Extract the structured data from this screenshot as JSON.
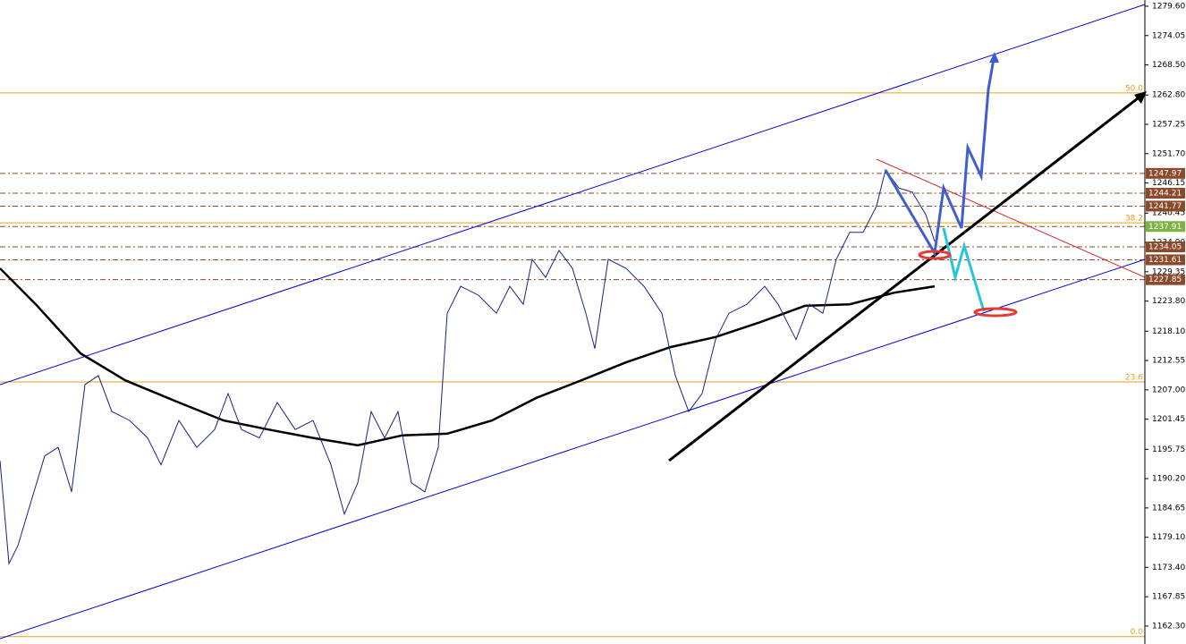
{
  "chart_data": {
    "type": "line",
    "x": [
      0,
      10,
      20,
      35,
      50,
      65,
      80,
      95,
      110,
      125,
      145,
      165,
      180,
      200,
      220,
      240,
      255,
      270,
      290,
      310,
      330,
      350,
      370,
      385,
      400,
      415,
      430,
      445,
      460,
      475,
      490,
      500,
      515,
      535,
      555,
      570,
      585,
      595,
      610,
      625,
      640,
      655,
      665,
      680,
      700,
      720,
      740,
      755,
      770,
      785,
      800,
      815,
      835,
      855,
      870,
      890,
      905,
      920,
      935,
      950,
      965,
      980,
      990,
      1005,
      1020,
      1035,
      1045
    ],
    "xlim": [
      0,
      1280
    ],
    "series": [
      {
        "color": "#1a237e",
        "values": [
          1193.6,
          1174.1,
          1177.5,
          1186,
          1194.5,
          1196.1,
          1187.7,
          1208,
          1209.7,
          1202.9,
          1201.2,
          1197.9,
          1192.8,
          1201.2,
          1196.1,
          1199.5,
          1206.3,
          1199.5,
          1197.9,
          1204.6,
          1199.5,
          1201.2,
          1192.8,
          1183.5,
          1189.4,
          1202.9,
          1197.9,
          1202.9,
          1189.4,
          1187.7,
          1196.1,
          1221.5,
          1226.6,
          1224.9,
          1221.5,
          1226.6,
          1223.2,
          1231.7,
          1228.3,
          1233.4,
          1230,
          1221.5,
          1214.8,
          1231.7,
          1230,
          1226.6,
          1221.5,
          1209.7,
          1202.9,
          1206.3,
          1216.5,
          1221.5,
          1223.2,
          1226.6,
          1223.2,
          1216.5,
          1223.2,
          1221.5,
          1231.7,
          1236.8,
          1236.8,
          1241.8,
          1248.6,
          1245.2,
          1244.4,
          1240.2,
          1235.1
        ]
      }
    ],
    "ma": {
      "color": "#000000",
      "x": [
        0,
        40,
        90,
        140,
        200,
        250,
        300,
        350,
        400,
        450,
        500,
        550,
        600,
        650,
        700,
        750,
        800,
        850,
        900,
        950,
        1000,
        1045
      ],
      "values": [
        1230,
        1223.2,
        1213.9,
        1208.8,
        1204.6,
        1201.2,
        1199.5,
        1197.9,
        1196.5,
        1198.4,
        1198.7,
        1201.2,
        1205.5,
        1208.8,
        1212.2,
        1215.1,
        1217,
        1219.8,
        1222.9,
        1223.2,
        1225.4,
        1226.6
      ]
    },
    "ylim": [
      1158.9,
      1280.78
    ],
    "yticks": [
      {
        "value": 1279.6,
        "label": "1279.60"
      },
      1274.05,
      {
        "value": 1268.5,
        "label": "1268.50"
      },
      {
        "value": 1262.8,
        "label": "1262.80"
      },
      1257.25,
      {
        "value": 1251.7,
        "label": "1251.70"
      },
      1246.15,
      1240.45,
      {
        "value": 1234.9,
        "label": "1234.90"
      },
      1229.35,
      {
        "value": 1223.8,
        "label": "1223.80"
      },
      {
        "value": 1218.1,
        "label": "1218.10"
      },
      1212.55,
      {
        "value": 1207.0,
        "label": "1207.00"
      },
      1201.45,
      1195.75,
      {
        "value": 1190.2,
        "label": "1190.20"
      },
      1184.65,
      {
        "value": 1179.1,
        "label": "1179.10"
      },
      {
        "value": 1173.4,
        "label": "1173.40"
      },
      1167.85,
      {
        "value": 1162.3,
        "label": "1162.30"
      }
    ],
    "price_levels": [
      1247.97,
      1244.21,
      1241.77,
      1237.91,
      1234.05,
      1231.61,
      1227.85
    ],
    "fib_levels": [
      {
        "value": 1263.2,
        "label": "50.0"
      },
      {
        "value": 1238.6,
        "label": "38.2"
      },
      {
        "value": 1208.5,
        "label": "23.6"
      },
      {
        "value": 1160.3,
        "label": "0.0"
      }
    ]
  }
}
